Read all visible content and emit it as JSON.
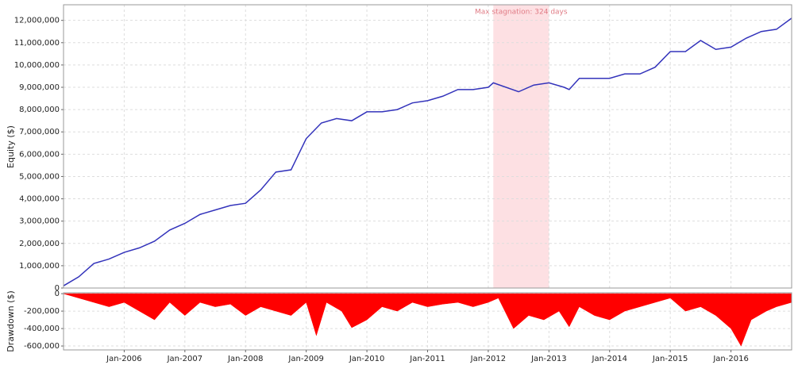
{
  "chart_data": [
    {
      "type": "line",
      "y_label": "Equity ($)",
      "color": "#3333bb",
      "grid": true,
      "xlim": [
        "2005-01",
        "2017-01"
      ],
      "ylim": [
        0,
        12700000
      ],
      "yticks": [
        0,
        {
          "value": 1000000,
          "label": "1,000,000"
        },
        {
          "value": 2000000,
          "label": "2,000,000"
        },
        {
          "value": 3000000,
          "label": "3,000,000"
        },
        {
          "value": 4000000,
          "label": "4,000,000"
        },
        {
          "value": 5000000,
          "label": "5,000,000"
        },
        {
          "value": 6000000,
          "label": "6,000,000"
        },
        {
          "value": 7000000,
          "label": "7,000,000"
        },
        {
          "value": 8000000,
          "label": "8,000,000"
        },
        {
          "value": 9000000,
          "label": "9,000,000"
        },
        {
          "value": 10000000,
          "label": "10,000,000"
        },
        {
          "value": 11000000,
          "label": "11,000,000"
        },
        {
          "value": 12000000,
          "label": "12,000,000"
        }
      ],
      "shade": {
        "x": [
          "2012-02",
          "2013-01"
        ],
        "label": "Max stagnation: 324 days",
        "color": "#fde0e3"
      },
      "x": [
        "2005-01",
        "2005-04",
        "2005-07",
        "2005-10",
        "2006-01",
        "2006-04",
        "2006-07",
        "2006-10",
        "2007-01",
        "2007-04",
        "2007-07",
        "2007-10",
        "2008-01",
        "2008-04",
        "2008-07",
        "2008-10",
        "2009-01",
        "2009-04",
        "2009-07",
        "2009-10",
        "2010-01",
        "2010-04",
        "2010-07",
        "2010-10",
        "2011-01",
        "2011-04",
        "2011-07",
        "2011-10",
        "2012-01",
        "2012-02",
        "2012-07",
        "2012-10",
        "2013-01",
        "2013-04",
        "2013-05",
        "2013-07",
        "2013-10",
        "2014-01",
        "2014-04",
        "2014-07",
        "2014-10",
        "2015-01",
        "2015-04",
        "2015-07",
        "2015-10",
        "2016-01",
        "2016-04",
        "2016-07",
        "2016-10",
        "2017-01"
      ],
      "values": [
        100000,
        500000,
        1100000,
        1300000,
        1600000,
        1800000,
        2100000,
        2600000,
        2900000,
        3300000,
        3500000,
        3700000,
        3800000,
        4400000,
        5200000,
        5300000,
        6700000,
        7400000,
        7600000,
        7500000,
        7900000,
        7900000,
        8000000,
        8300000,
        8400000,
        8600000,
        8900000,
        8900000,
        9000000,
        9200000,
        8800000,
        9100000,
        9200000,
        9000000,
        8900000,
        9400000,
        9400000,
        9400000,
        9600000,
        9600000,
        9900000,
        10600000,
        10600000,
        11100000,
        10700000,
        10800000,
        11200000,
        11500000,
        11600000,
        12100000
      ]
    },
    {
      "type": "area",
      "y_label": "Drawdown ($)",
      "color": "#ff0000",
      "grid": true,
      "xlim": [
        "2005-01",
        "2017-01"
      ],
      "ylim": [
        -645000,
        10000
      ],
      "yticks": [
        0,
        {
          "value": -200000,
          "label": "-200,000"
        },
        {
          "value": -400000,
          "label": "-400,000"
        },
        {
          "value": -600000,
          "label": "-600,000"
        }
      ],
      "xticks": [
        {
          "value": "2006-01",
          "label": "Jan-2006"
        },
        {
          "value": "2007-01",
          "label": "Jan-2007"
        },
        {
          "value": "2008-01",
          "label": "Jan-2008"
        },
        {
          "value": "2009-01",
          "label": "Jan-2009"
        },
        {
          "value": "2010-01",
          "label": "Jan-2010"
        },
        {
          "value": "2011-01",
          "label": "Jan-2011"
        },
        {
          "value": "2012-01",
          "label": "Jan-2012"
        },
        {
          "value": "2013-01",
          "label": "Jan-2013"
        },
        {
          "value": "2014-01",
          "label": "Jan-2014"
        },
        {
          "value": "2015-01",
          "label": "Jan-2015"
        },
        {
          "value": "2016-01",
          "label": "Jan-2016"
        }
      ],
      "x": [
        "2005-01",
        "2005-04",
        "2005-07",
        "2005-10",
        "2006-01",
        "2006-04",
        "2006-07",
        "2006-10",
        "2007-01",
        "2007-04",
        "2007-07",
        "2007-10",
        "2008-01",
        "2008-04",
        "2008-07",
        "2008-10",
        "2009-01",
        "2009-03",
        "2009-05",
        "2009-08",
        "2009-10",
        "2010-01",
        "2010-04",
        "2010-07",
        "2010-10",
        "2011-01",
        "2011-04",
        "2011-07",
        "2011-10",
        "2012-01",
        "2012-03",
        "2012-06",
        "2012-09",
        "2012-12",
        "2013-03",
        "2013-05",
        "2013-07",
        "2013-10",
        "2014-01",
        "2014-04",
        "2014-07",
        "2014-10",
        "2015-01",
        "2015-04",
        "2015-07",
        "2015-10",
        "2016-01",
        "2016-03",
        "2016-05",
        "2016-08",
        "2016-10",
        "2017-01"
      ],
      "values": [
        0,
        -50000,
        -100000,
        -150000,
        -100000,
        -200000,
        -300000,
        -100000,
        -250000,
        -100000,
        -150000,
        -120000,
        -250000,
        -150000,
        -200000,
        -250000,
        -100000,
        -480000,
        -100000,
        -200000,
        -390000,
        -300000,
        -150000,
        -200000,
        -100000,
        -150000,
        -120000,
        -100000,
        -150000,
        -100000,
        -50000,
        -400000,
        -250000,
        -300000,
        -200000,
        -380000,
        -150000,
        -250000,
        -300000,
        -200000,
        -150000,
        -100000,
        -50000,
        -200000,
        -150000,
        -250000,
        -400000,
        -600000,
        -300000,
        -200000,
        -150000,
        -100000
      ]
    }
  ]
}
